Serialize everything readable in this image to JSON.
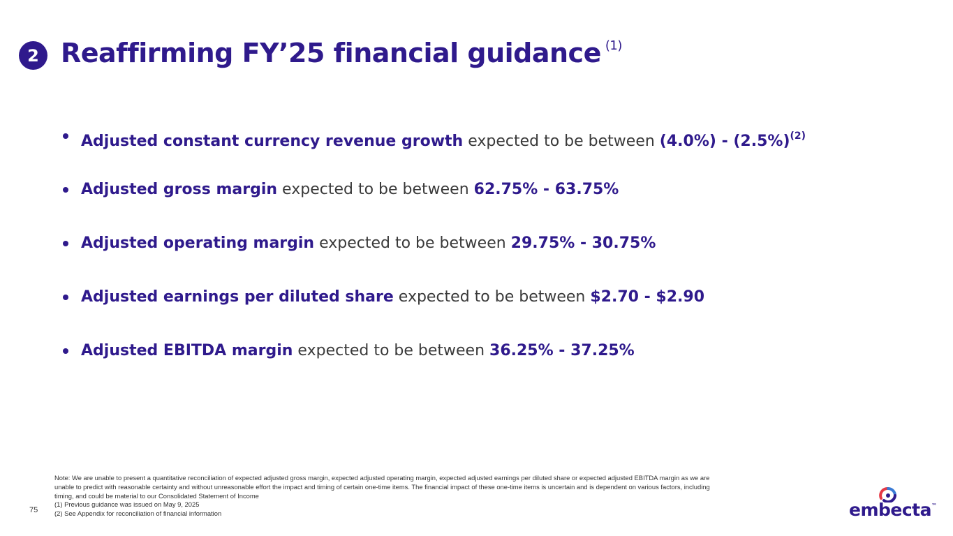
{
  "header": {
    "badge_number": "2",
    "title": "Reaffirming FY’25 financial guidance",
    "title_footnote": "(1)"
  },
  "guidance": [
    {
      "metric": "Adjusted constant currency revenue growth",
      "connector": " expected to be between ",
      "range": "(4.0%) - (2.5%)",
      "footnote": "(2)"
    },
    {
      "metric": "Adjusted gross margin",
      "connector": " expected to be between ",
      "range": "62.75% - 63.75%"
    },
    {
      "metric": "Adjusted operating margin",
      "connector": " expected to be between ",
      "range": "29.75% - 30.75%"
    },
    {
      "metric": "Adjusted earnings per diluted share",
      "connector": " expected to be between ",
      "range": "$2.70 - $2.90"
    },
    {
      "metric": "Adjusted EBITDA margin",
      "connector": " expected to be between ",
      "range": "36.25% - 37.25%"
    }
  ],
  "footer": {
    "note": "Note: We are unable to present a quantitative reconciliation of expected adjusted gross margin, expected adjusted operating margin, expected adjusted earnings per diluted share or expected adjusted EBITDA margin as we are unable to predict with reasonable certainty and without unreasonable effort the impact and timing of certain one-time items. The financial impact of these one-time items is uncertain and is dependent on various factors, including timing, and could be material to our Consolidated Statement of Income",
    "footnote_1": "(1) Previous guidance was issued on May 9, 2025",
    "footnote_2": "(2) See Appendix for reconciliation of financial information",
    "page_number": "75",
    "logo_text": "embecta",
    "logo_tm": "™"
  },
  "colors": {
    "brand": "#2f1a8c",
    "accent_red": "#e63946",
    "accent_blue": "#3a7bd5"
  }
}
